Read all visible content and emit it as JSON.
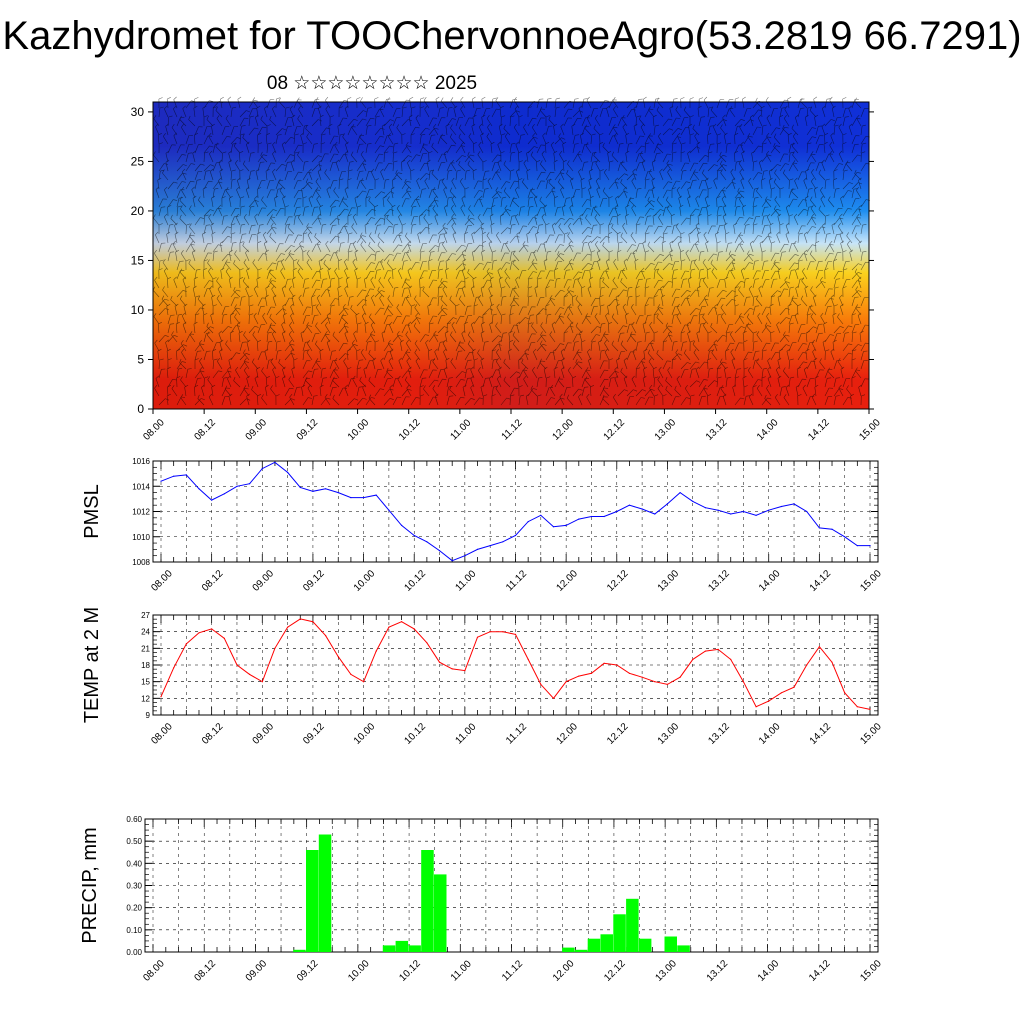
{
  "title": "Kazhydromet for TOOChervonnoeAgro(53.2819 66.7291)",
  "subtitle": "08 ☆☆☆☆☆☆☆☆ 2025",
  "colors": {
    "pmsl_line": "#0000ff",
    "temp_line": "#ff0000",
    "precip_bar": "#00ff00",
    "grid": "#000000"
  },
  "time_ticks": [
    "08.00",
    "08.12",
    "09.00",
    "09.12",
    "10.00",
    "10.12",
    "11.00",
    "11.12",
    "12.00",
    "12.12",
    "13.00",
    "13.12",
    "14.00",
    "14.12",
    "15.00"
  ],
  "chart_data": [
    {
      "type": "heatmap",
      "name_hint": "temperature cross-section with wind barbs",
      "xlabel": "",
      "ylabel": "",
      "x_ticks": [
        "08.00",
        "08.12",
        "09.00",
        "09.12",
        "10.00",
        "10.12",
        "11.00",
        "11.12",
        "12.00",
        "12.12",
        "13.00",
        "13.12",
        "14.00",
        "14.12",
        "15.00"
      ],
      "y_ticks": [
        0,
        5,
        10,
        15,
        20,
        25,
        30
      ],
      "ylim": [
        0,
        31
      ],
      "color_bands": [
        {
          "level_from": 0,
          "level_to": 6,
          "color": "#e8200e"
        },
        {
          "level_from": 6,
          "level_to": 12,
          "color": "#f97c0a"
        },
        {
          "level_from": 12,
          "level_to": 15.5,
          "color": "#fbd21e"
        },
        {
          "level_from": 15.5,
          "level_to": 18,
          "color": "#c8e6fa"
        },
        {
          "level_from": 18,
          "level_to": 22,
          "color": "#1e8ef0"
        },
        {
          "level_from": 22,
          "level_to": 31,
          "color": "#1030d8"
        }
      ]
    },
    {
      "type": "line",
      "ylabel": "PMSL",
      "x_ticks": [
        "08.00",
        "08.12",
        "09.00",
        "09.12",
        "10.00",
        "10.12",
        "11.00",
        "11.12",
        "12.00",
        "12.12",
        "13.00",
        "13.12",
        "14.00",
        "14.12",
        "15.00"
      ],
      "y_ticks": [
        1008,
        1010,
        1012,
        1014,
        1016
      ],
      "ylim": [
        1008,
        1016
      ],
      "values": [
        1014.4,
        1014.8,
        1014.9,
        1013.8,
        1012.9,
        1013.4,
        1014.0,
        1014.2,
        1015.4,
        1015.9,
        1015.1,
        1013.9,
        1013.6,
        1013.8,
        1013.5,
        1013.1,
        1013.1,
        1013.3,
        1012.1,
        1010.9,
        1010.1,
        1009.6,
        1008.9,
        1008.1,
        1008.5,
        1009.0,
        1009.3,
        1009.6,
        1010.1,
        1011.2,
        1011.7,
        1010.8,
        1010.9,
        1011.4,
        1011.6,
        1011.6,
        1012.0,
        1012.5,
        1012.2,
        1011.8,
        1012.6,
        1013.5,
        1012.8,
        1012.3,
        1012.1,
        1011.8,
        1012.0,
        1011.7,
        1012.1,
        1012.4,
        1012.6,
        1012.0,
        1010.7,
        1010.6,
        1010.0,
        1009.3,
        1009.3
      ]
    },
    {
      "type": "line",
      "ylabel": "TEMP at 2 M",
      "x_ticks": [
        "08.00",
        "08.12",
        "09.00",
        "09.12",
        "10.00",
        "10.12",
        "11.00",
        "11.12",
        "12.00",
        "12.12",
        "13.00",
        "13.12",
        "14.00",
        "14.12",
        "15.00"
      ],
      "y_ticks": [
        9,
        12,
        15,
        18,
        21,
        24,
        27
      ],
      "ylim": [
        9,
        27
      ],
      "values": [
        12.3,
        17.5,
        21.8,
        23.8,
        24.5,
        22.8,
        18.0,
        16.3,
        15.0,
        21.0,
        24.8,
        26.3,
        25.8,
        23.3,
        19.5,
        16.3,
        15.0,
        20.5,
        24.8,
        25.8,
        24.5,
        22.0,
        18.5,
        17.3,
        17.0,
        23.0,
        24.0,
        24.0,
        23.5,
        19.0,
        14.5,
        12.0,
        15.0,
        16.0,
        16.5,
        18.3,
        18.0,
        16.5,
        15.8,
        15.0,
        14.5,
        15.8,
        19.0,
        20.5,
        20.8,
        19.0,
        15.0,
        10.5,
        11.5,
        13.0,
        14.0,
        18.0,
        21.3,
        18.5,
        13.0,
        10.5,
        10.0
      ]
    },
    {
      "type": "bar",
      "ylabel": "PRECIP, mm",
      "x_ticks": [
        "08.00",
        "08.12",
        "09.00",
        "09.12",
        "10.00",
        "10.12",
        "11.00",
        "11.12",
        "12.00",
        "12.12",
        "13.00",
        "13.12",
        "14.00",
        "14.12",
        "15.00"
      ],
      "y_ticks": [
        "0.00",
        "0.10",
        "0.20",
        "0.30",
        "0.40",
        "0.50",
        "0.60"
      ],
      "ylim": [
        0,
        0.6
      ],
      "values": [
        0,
        0,
        0,
        0,
        0,
        0,
        0,
        0,
        0,
        0,
        0,
        0.01,
        0.46,
        0.53,
        0,
        0,
        0,
        0,
        0.03,
        0.05,
        0.03,
        0.46,
        0.35,
        0,
        0,
        0,
        0,
        0,
        0,
        0,
        0,
        0,
        0.02,
        0.01,
        0.06,
        0.08,
        0.17,
        0.24,
        0.06,
        0,
        0.07,
        0.03,
        0,
        0,
        0,
        0,
        0,
        0,
        0,
        0,
        0,
        0,
        0,
        0,
        0,
        0,
        0
      ]
    }
  ]
}
